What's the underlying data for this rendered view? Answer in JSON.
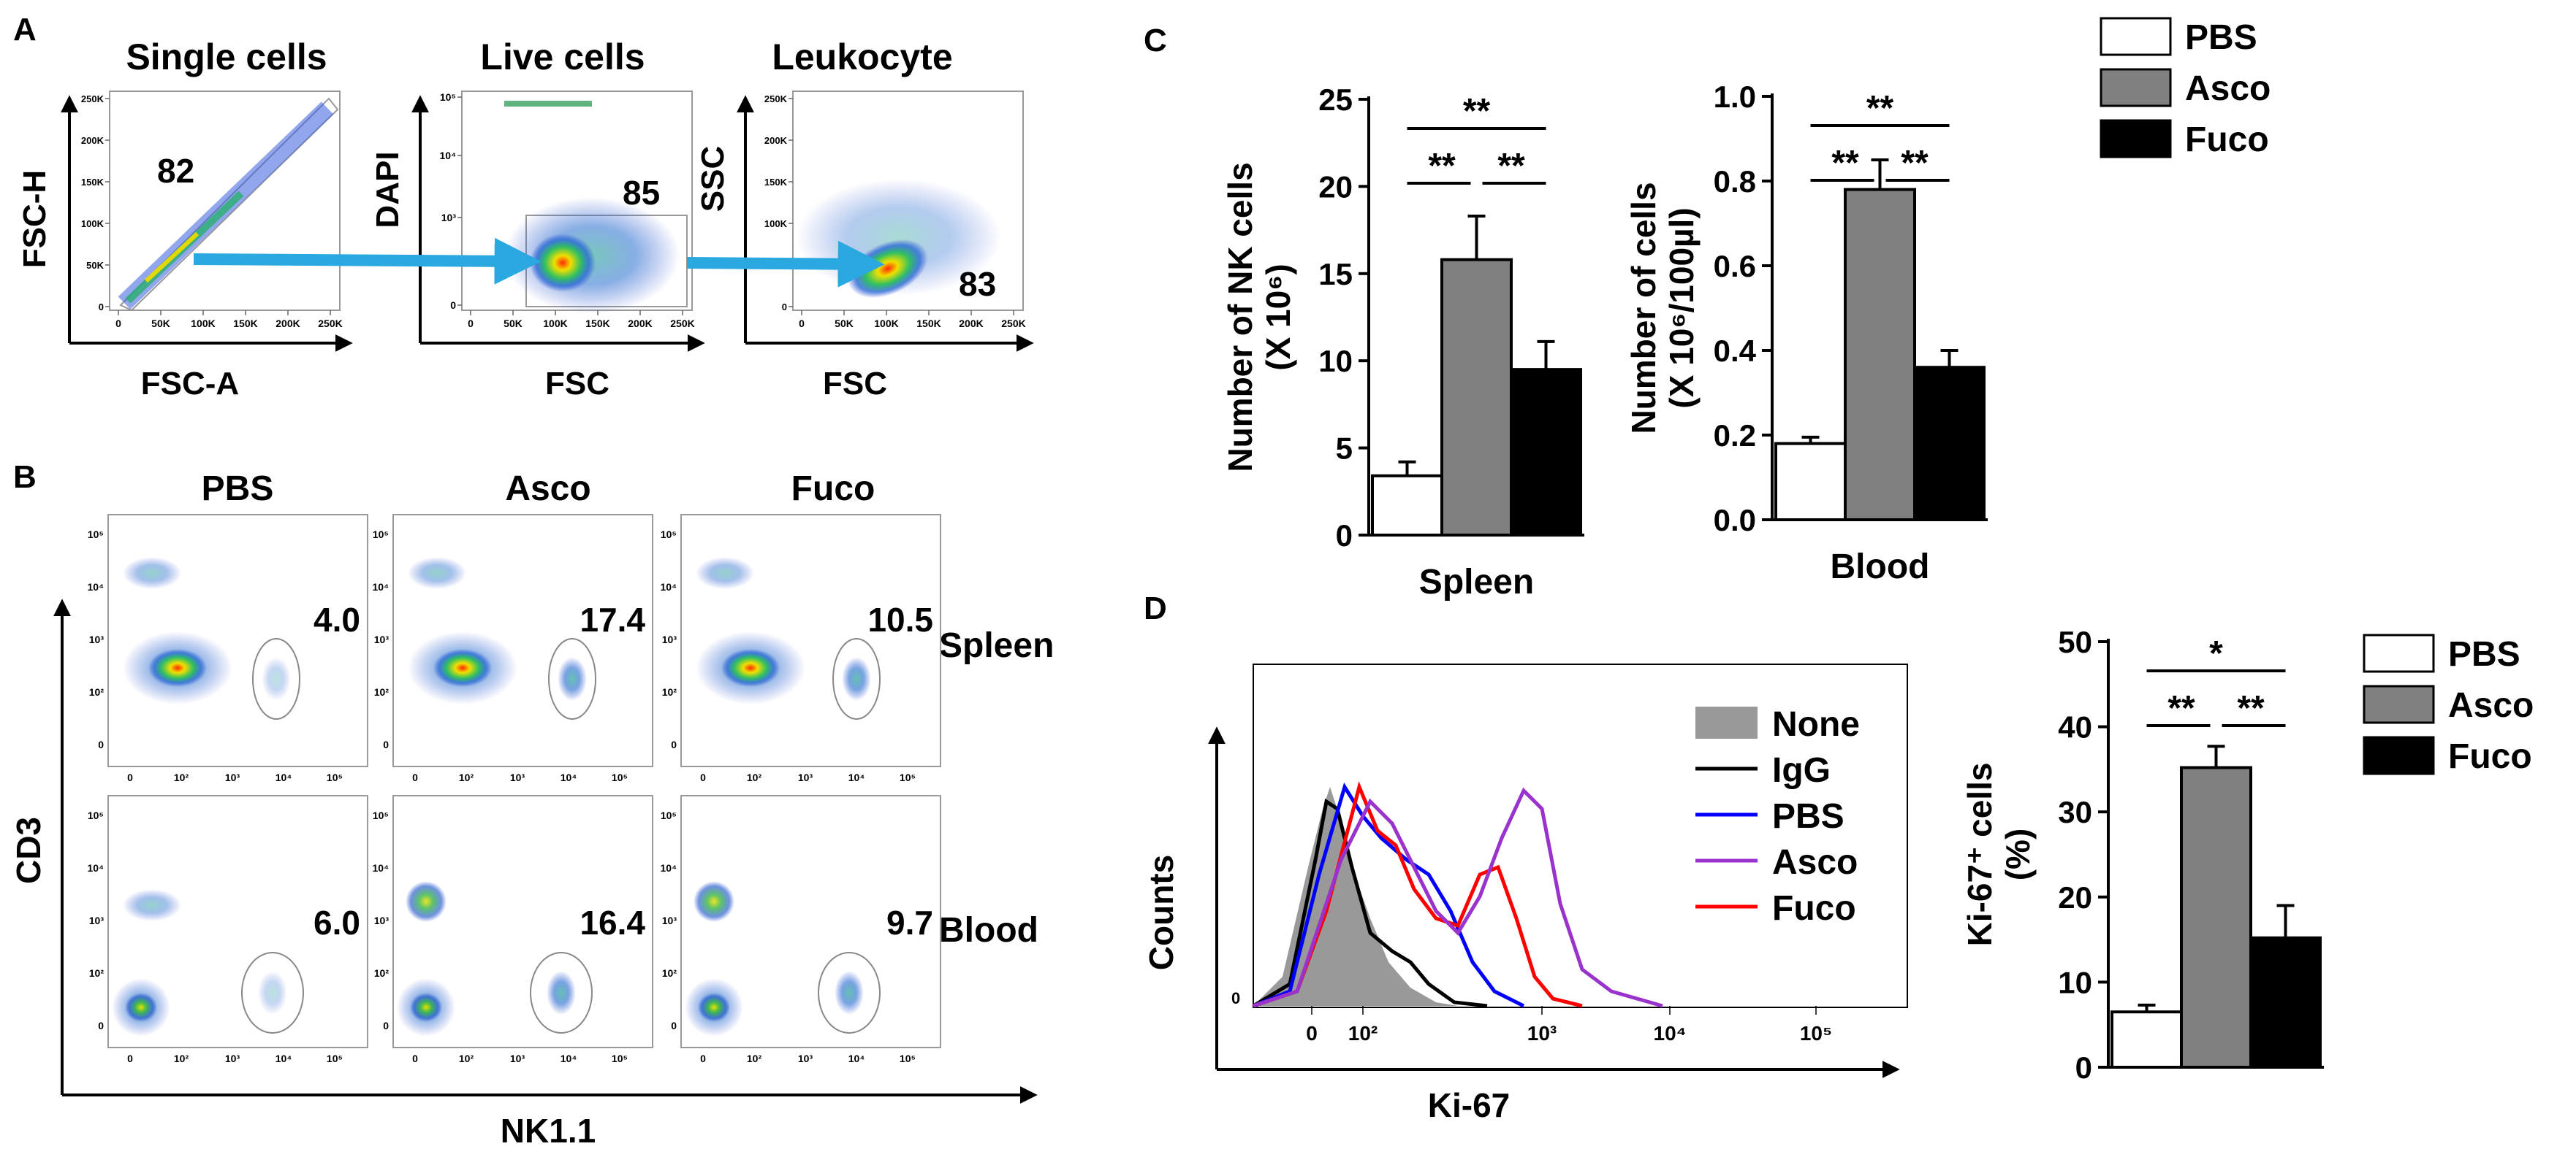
{
  "panel_letters": [
    "A",
    "B",
    "C",
    "D"
  ],
  "panel_a": {
    "plots": [
      {
        "title": "Single cells",
        "ylabel": "FSC-H",
        "xlabel": "FSC-A",
        "gate_value": "82"
      },
      {
        "title": "Live cells",
        "ylabel": "DAPI",
        "xlabel": "FSC",
        "gate_value": "85"
      },
      {
        "title": "Leukocyte",
        "ylabel": "SSC",
        "xlabel": "FSC",
        "gate_value": "83"
      }
    ],
    "x_ticks": [
      "0",
      "50K",
      "100K",
      "150K",
      "200K",
      "250K"
    ],
    "y_ticks": [
      "0",
      "50K",
      "100K",
      "150K",
      "200K",
      "250K"
    ],
    "dapi_ticks": [
      "0",
      "10³",
      "10⁴",
      "10⁵"
    ]
  },
  "panel_b": {
    "columns": [
      "PBS",
      "Asco",
      "Fuco"
    ],
    "rows": [
      "Spleen",
      "Blood"
    ],
    "values": [
      [
        "4.0",
        "17.4",
        "10.5"
      ],
      [
        "6.0",
        "16.4",
        "9.7"
      ]
    ],
    "ylabel": "CD3",
    "xlabel": "NK1.1",
    "log_ticks": [
      "0",
      "10²",
      "10³",
      "10⁴",
      "10⁵"
    ]
  },
  "panel_d_histogram": {
    "ylabel": "Counts",
    "xlabel": "Ki-67",
    "x_ticks": [
      "0",
      "10²",
      "10³",
      "10⁴",
      "10⁵"
    ],
    "y_ticks": [
      "0"
    ],
    "legend": [
      {
        "name": "None",
        "color": "#999999"
      },
      {
        "name": "IgG",
        "color": "#000000"
      },
      {
        "name": "PBS",
        "color": "#0000ff"
      },
      {
        "name": "Asco",
        "color": "#9a32cd"
      },
      {
        "name": "Fuco",
        "color": "#ff0000"
      }
    ]
  },
  "colors": {
    "PBS": "#ffffff",
    "Asco": "#808080",
    "Fuco": "#000000"
  },
  "legend_c": [
    "PBS",
    "Asco",
    "Fuco"
  ],
  "legend_d": [
    "PBS",
    "Asco",
    "Fuco"
  ],
  "chart_data": [
    {
      "type": "bar",
      "ylabel": "Number of NK cells (X 10⁶)",
      "xlabel": "Spleen",
      "categories": [
        "PBS",
        "Asco",
        "Fuco"
      ],
      "values": [
        3.4,
        15.8,
        9.5
      ],
      "errors": [
        0.8,
        2.5,
        1.6
      ],
      "ylim": [
        0,
        25
      ],
      "yticks": [
        "0",
        "5",
        "10",
        "15",
        "20",
        "25"
      ],
      "significance": [
        "**",
        "**",
        "**"
      ]
    },
    {
      "type": "bar",
      "ylabel": "Number of cells (X 10⁶/100µl)",
      "xlabel": "Blood",
      "categories": [
        "PBS",
        "Asco",
        "Fuco"
      ],
      "values": [
        0.18,
        0.78,
        0.36
      ],
      "errors": [
        0.015,
        0.07,
        0.04
      ],
      "ylim": [
        0,
        1.0
      ],
      "yticks": [
        "0.0",
        "0.2",
        "0.4",
        "0.6",
        "0.8",
        "1.0"
      ],
      "significance": [
        "**",
        "**",
        "**"
      ]
    },
    {
      "type": "bar",
      "ylabel": "Ki-67⁺ cells (%)",
      "xlabel": "",
      "categories": [
        "PBS",
        "Asco",
        "Fuco"
      ],
      "values": [
        6.5,
        35.2,
        15.2
      ],
      "errors": [
        0.8,
        2.5,
        3.8
      ],
      "ylim": [
        0,
        50
      ],
      "yticks": [
        "0",
        "10",
        "20",
        "30",
        "40",
        "50"
      ],
      "significance": [
        "**",
        "**",
        "*"
      ]
    }
  ]
}
